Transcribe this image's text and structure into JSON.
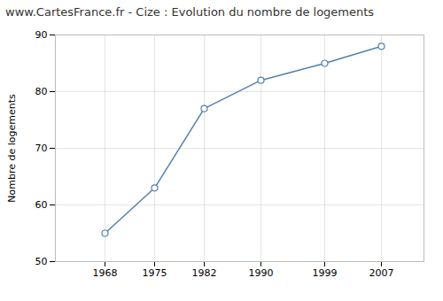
{
  "chart_data": {
    "type": "line",
    "title": "www.CartesFrance.fr - Cize : Evolution du nombre de logements",
    "ylabel": "Nombre de logements",
    "x": [
      1968,
      1975,
      1982,
      1990,
      1999,
      2007
    ],
    "values": [
      55,
      63,
      77,
      82,
      85,
      88
    ],
    "color": "#5580aa",
    "marker": "circle",
    "xlim": [
      1961,
      2013
    ],
    "xticks": [
      1968,
      1975,
      1982,
      1990,
      1999,
      2007
    ],
    "ylim": [
      50,
      90
    ],
    "yticks": [
      50,
      60,
      70,
      80,
      90
    ],
    "grid": true
  }
}
